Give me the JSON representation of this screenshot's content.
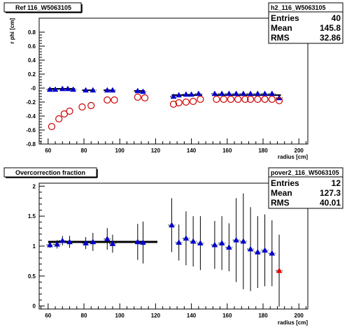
{
  "chart_data": [
    {
      "type": "scatter",
      "title": "Ref 116_W5063105",
      "xlabel": "radius [cm]",
      "ylabel": "r phi [cm]",
      "xlim": [
        55,
        205
      ],
      "ylim": [
        -0.8,
        1.0
      ],
      "xticks": [
        60,
        80,
        100,
        120,
        140,
        160,
        180,
        200
      ],
      "yticks": [
        -0.8,
        -0.6,
        -0.4,
        -0.2,
        0,
        0.2,
        0.4,
        0.6,
        0.8
      ],
      "ytick_labels": [
        "-0.8",
        "-0.6",
        "-0.4",
        "-0.2",
        "-0",
        "0.2",
        "0.4",
        "0.6",
        "0.8"
      ],
      "stats": {
        "name": "h2_116_W5063105",
        "rows": [
          {
            "label": "Entries",
            "value": "40"
          },
          {
            "label": "Mean",
            "value": "145.8"
          },
          {
            "label": "RMS",
            "value": "32.86"
          }
        ]
      },
      "profile_segments": [
        {
          "x": [
            60,
            75
          ],
          "y": -0.01
        },
        {
          "x": [
            79,
            86
          ],
          "y": -0.03
        },
        {
          "x": [
            91,
            97
          ],
          "y": -0.03
        },
        {
          "x": [
            108,
            114
          ],
          "y": -0.04
        },
        {
          "x": [
            129,
            146
          ],
          "y": -0.1
        },
        {
          "x": [
            153,
            190
          ],
          "y": -0.1
        }
      ],
      "series": [
        {
          "marker": "triangle",
          "color": "#0000cc",
          "x": [
            61,
            64,
            68,
            71,
            74,
            81,
            85,
            93,
            96,
            110,
            113,
            130,
            133,
            137,
            140,
            144,
            153,
            157,
            161,
            165,
            169,
            173,
            177,
            181,
            185,
            189
          ],
          "y": [
            -0.02,
            -0.02,
            -0.01,
            -0.01,
            -0.02,
            -0.03,
            -0.03,
            -0.03,
            -0.03,
            -0.04,
            -0.05,
            -0.12,
            -0.1,
            -0.09,
            -0.09,
            -0.08,
            -0.08,
            -0.08,
            -0.08,
            -0.08,
            -0.08,
            -0.08,
            -0.08,
            -0.08,
            -0.08,
            -0.14
          ]
        },
        {
          "marker": "circle",
          "color": "#cc0000",
          "x": [
            62,
            66,
            69,
            72,
            79,
            84,
            93,
            97,
            110,
            114,
            130,
            133,
            137,
            141,
            145,
            154,
            158,
            162,
            166,
            170,
            173,
            177,
            181,
            185,
            189
          ],
          "y": [
            -0.55,
            -0.44,
            -0.37,
            -0.33,
            -0.27,
            -0.25,
            -0.17,
            -0.17,
            -0.13,
            -0.14,
            -0.23,
            -0.21,
            -0.2,
            -0.19,
            -0.16,
            -0.16,
            -0.16,
            -0.16,
            -0.16,
            -0.16,
            -0.16,
            -0.16,
            -0.16,
            -0.16,
            -0.18
          ]
        }
      ]
    },
    {
      "type": "scatter",
      "title": "Overcorrection fraction",
      "xlabel": "radius [cm]",
      "ylabel": "",
      "xlim": [
        55,
        205
      ],
      "ylim": [
        -0.05,
        2.05
      ],
      "xticks": [
        60,
        80,
        100,
        120,
        140,
        160,
        180,
        200
      ],
      "yticks": [
        0,
        0.5,
        1,
        1.5,
        2
      ],
      "ytick_labels": [
        "0",
        "0.5",
        "1",
        "1.5",
        "2"
      ],
      "stats": {
        "name": "pover2_116_W5063105",
        "rows": [
          {
            "label": "Entries",
            "value": "12"
          },
          {
            "label": "Mean",
            "value": "127.3"
          },
          {
            "label": "RMS",
            "value": "40.01"
          }
        ]
      },
      "reference_line": {
        "x": [
          60,
          121
        ],
        "y": 1.07
      },
      "series": [
        {
          "marker": "triangle",
          "color": "#0000cc",
          "points": [
            {
              "x": 61,
              "y": 1.02,
              "err": 0.05
            },
            {
              "x": 65,
              "y": 1.03,
              "err": 0.07
            },
            {
              "x": 68,
              "y": 1.09,
              "err": 0.08
            },
            {
              "x": 72,
              "y": 1.07,
              "err": 0.1
            },
            {
              "x": 81,
              "y": 1.05,
              "err": 0.1
            },
            {
              "x": 85,
              "y": 1.07,
              "err": 0.15
            },
            {
              "x": 93,
              "y": 1.12,
              "err": 0.18
            },
            {
              "x": 96,
              "y": 1.04,
              "err": 0.15
            },
            {
              "x": 110,
              "y": 1.07,
              "err": 0.3
            },
            {
              "x": 113,
              "y": 1.06,
              "err": 0.35
            },
            {
              "x": 129,
              "y": 1.35,
              "err": 0.45
            },
            {
              "x": 133,
              "y": 1.06,
              "err": 0.3
            },
            {
              "x": 137,
              "y": 1.13,
              "err": 0.45
            },
            {
              "x": 141,
              "y": 1.08,
              "err": 0.42
            },
            {
              "x": 145,
              "y": 1.05,
              "err": 0.45
            },
            {
              "x": 153,
              "y": 1.02,
              "err": 0.4
            },
            {
              "x": 157,
              "y": 1.05,
              "err": 0.45
            },
            {
              "x": 161,
              "y": 0.98,
              "err": 0.4
            },
            {
              "x": 165,
              "y": 1.1,
              "err": 0.7
            },
            {
              "x": 169,
              "y": 1.08,
              "err": 0.8
            },
            {
              "x": 173,
              "y": 0.95,
              "err": 0.7
            },
            {
              "x": 177,
              "y": 0.9,
              "err": 0.6
            },
            {
              "x": 181,
              "y": 0.93,
              "err": 0.6
            },
            {
              "x": 185,
              "y": 0.88,
              "err": 0.55
            }
          ]
        },
        {
          "marker": "triangle",
          "color": "#ee0000",
          "points": [
            {
              "x": 189,
              "y": 0.59,
              "err": 0.6
            }
          ]
        }
      ]
    }
  ]
}
